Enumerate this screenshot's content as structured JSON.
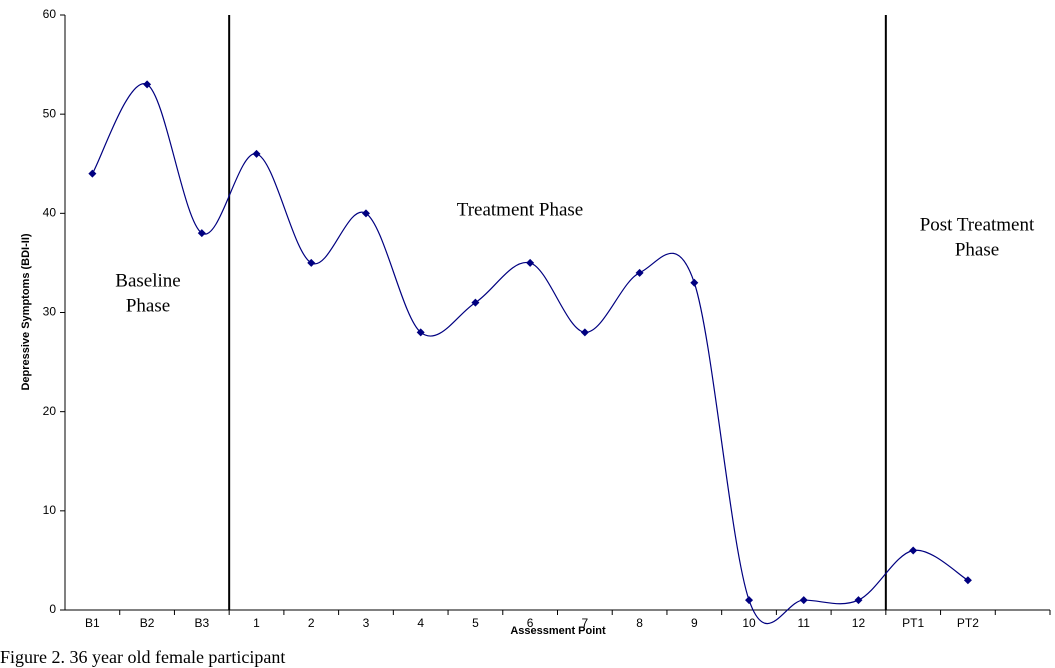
{
  "chart_data": {
    "type": "line",
    "ylabel": "Depressive Symptoms (BDI-II)",
    "xlabel": "Assessment Point",
    "caption": "Figure 2. 36 year old female participant",
    "annotations": [
      [
        "Baseline",
        "Phase"
      ],
      [
        "Treatment Phase"
      ],
      [
        "Post Treatment",
        "Phase"
      ]
    ],
    "categories": [
      "B1",
      "B2",
      "B3",
      "1",
      "2",
      "3",
      "4",
      "5",
      "6",
      "7",
      "8",
      "9",
      "10",
      "11",
      "12",
      "PT1",
      "PT2",
      null
    ],
    "series": [
      {
        "color": "#000080",
        "values": [
          44,
          53,
          38,
          46,
          35,
          40,
          28,
          31,
          35,
          28,
          34,
          33,
          1,
          1,
          1,
          6,
          3,
          null
        ]
      }
    ],
    "ylim": [
      0,
      60
    ],
    "yticks": [
      0,
      10,
      20,
      30,
      40,
      50,
      60
    ]
  }
}
